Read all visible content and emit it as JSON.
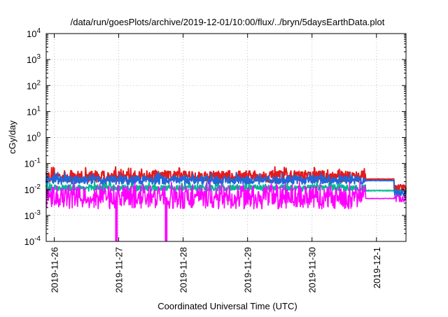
{
  "chart_data": {
    "type": "line",
    "title": "/data/run/goesPlots/archive/2019-12-01/10:00/flux/../bryn/5daysEarthData.plot",
    "xlabel": "Coordinated Universal Time (UTC)",
    "ylabel": "cGy/day",
    "yscale": "log",
    "ylim_exponents": [
      -4,
      4
    ],
    "y_ticks": [
      {
        "base": "10",
        "exp": "-4",
        "value": 0.0001
      },
      {
        "base": "10",
        "exp": "-3",
        "value": 0.001
      },
      {
        "base": "10",
        "exp": "-2",
        "value": 0.01
      },
      {
        "base": "10",
        "exp": "-1",
        "value": 0.1
      },
      {
        "base": "10",
        "exp": "0",
        "value": 1
      },
      {
        "base": "10",
        "exp": "1",
        "value": 10
      },
      {
        "base": "10",
        "exp": "2",
        "value": 100
      },
      {
        "base": "10",
        "exp": "3",
        "value": 1000
      },
      {
        "base": "10",
        "exp": "4",
        "value": 10000
      }
    ],
    "xlim": [
      "2019-11-25T21:00",
      "2019-12-01T11:00"
    ],
    "x_ticks": [
      {
        "label": "2019-11-26",
        "t": "2019-11-26T00:00"
      },
      {
        "label": "2019-11-27",
        "t": "2019-11-27T00:00"
      },
      {
        "label": "2019-11-28",
        "t": "2019-11-28T00:00"
      },
      {
        "label": "2019-11-29",
        "t": "2019-11-29T00:00"
      },
      {
        "label": "2019-11-30",
        "t": "2019-11-30T00:00"
      },
      {
        "label": "2019-12-1",
        "t": "2019-12-01T00:00"
      }
    ],
    "grid": true,
    "series": [
      {
        "color": "#e41a1c",
        "level": 0.032,
        "noise": 0.22,
        "smooth_from": "2019-11-30T20:00",
        "smooth_to": "2019-12-01T06:30",
        "smooth_value": 0.025,
        "end_value": 0.012
      },
      {
        "color": "#00b894",
        "level": 0.0115,
        "noise": 0.12,
        "smooth_from": "2019-11-30T20:00",
        "smooth_to": "2019-12-01T06:30",
        "smooth_value": 0.009,
        "end_value": 0.0075
      },
      {
        "color": "#2166d6",
        "level": 0.023,
        "noise": 0.16,
        "smooth_from": "2019-11-30T20:00",
        "smooth_to": "2019-12-01T06:30",
        "smooth_value": 0.022,
        "end_value": 0.0075
      },
      {
        "color": "#ff00ff",
        "level": 0.005,
        "noise": 0.45,
        "smooth_from": "2019-11-30T20:00",
        "smooth_to": "2019-12-01T06:30",
        "smooth_value": 0.0045,
        "end_value": 0.0048
      }
    ],
    "dropouts": [
      {
        "series": 3,
        "t": "2019-11-26T23:00"
      },
      {
        "series": 3,
        "t": "2019-11-26T23:20"
      },
      {
        "series": 3,
        "t": "2019-11-27T17:30"
      },
      {
        "series": 3,
        "t": "2019-11-27T17:50"
      }
    ]
  }
}
